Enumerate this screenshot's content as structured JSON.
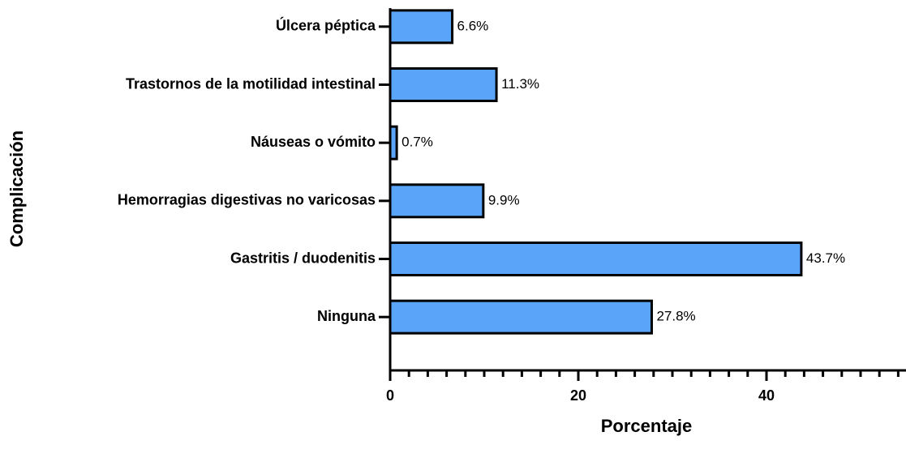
{
  "chart_data": {
    "type": "barh",
    "categories": [
      "Úlcera péptica",
      "Trastornos de la motilidad intestinal",
      "Náuseas o vómito",
      "Hemorragias digestivas no varicosas",
      "Gastritis / duodenitis",
      "Ninguna"
    ],
    "values": [
      6.6,
      11.3,
      0.7,
      9.9,
      43.7,
      27.8
    ],
    "value_labels": [
      "6.6%",
      "11.3%",
      "0.7%",
      "9.9%",
      "43.7%",
      "27.8%"
    ],
    "color": "#5aa5fa",
    "xlim": [
      0,
      55
    ],
    "xticks": [
      0,
      20,
      40
    ],
    "xminor_ticks": [
      2,
      4,
      6,
      8,
      10,
      12,
      14,
      16,
      18,
      22,
      24,
      26,
      28,
      30,
      32,
      34,
      36,
      38,
      42,
      44,
      46,
      48,
      50,
      52,
      54
    ],
    "xlabel": "Porcentaje",
    "ylabel": "Complicación"
  }
}
